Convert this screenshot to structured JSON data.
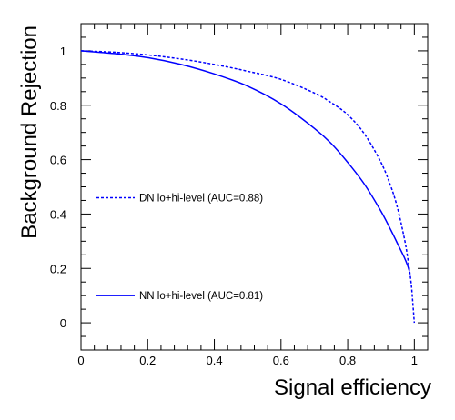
{
  "chart_data": {
    "type": "line",
    "title": "",
    "xlabel": "Signal efficiency",
    "ylabel": "Background Rejection",
    "xlim": [
      0,
      1.04
    ],
    "ylim": [
      -0.1,
      1.1
    ],
    "x_ticks": [
      "0",
      "0.2",
      "0.4",
      "0.6",
      "0.8",
      "1"
    ],
    "y_ticks": [
      "0",
      "0.2",
      "0.4",
      "0.6",
      "0.8",
      "1"
    ],
    "grid": false,
    "legend_position": "left",
    "series": [
      {
        "name": "DN lo+hi-level (AUC=0.88)",
        "color": "#0000ff",
        "style": "dashed",
        "x": [
          0,
          0.1,
          0.2,
          0.3,
          0.4,
          0.5,
          0.6,
          0.7,
          0.75,
          0.8,
          0.85,
          0.9,
          0.93,
          0.95,
          0.97,
          0.98,
          0.99,
          0.995,
          1.0
        ],
        "y": [
          1.0,
          0.995,
          0.985,
          0.97,
          0.95,
          0.925,
          0.895,
          0.845,
          0.81,
          0.765,
          0.695,
          0.59,
          0.5,
          0.42,
          0.31,
          0.24,
          0.15,
          0.08,
          0.0
        ]
      },
      {
        "name": "NN lo+hi-level (AUC=0.81)",
        "color": "#0000ff",
        "style": "solid",
        "x": [
          0,
          0.1,
          0.2,
          0.3,
          0.4,
          0.5,
          0.6,
          0.7,
          0.75,
          0.8,
          0.85,
          0.9,
          0.93,
          0.95,
          0.97,
          0.98,
          0.985
        ],
        "y": [
          1.0,
          0.99,
          0.975,
          0.95,
          0.915,
          0.87,
          0.805,
          0.715,
          0.66,
          0.59,
          0.51,
          0.41,
          0.34,
          0.29,
          0.24,
          0.21,
          0.19
        ]
      }
    ]
  }
}
